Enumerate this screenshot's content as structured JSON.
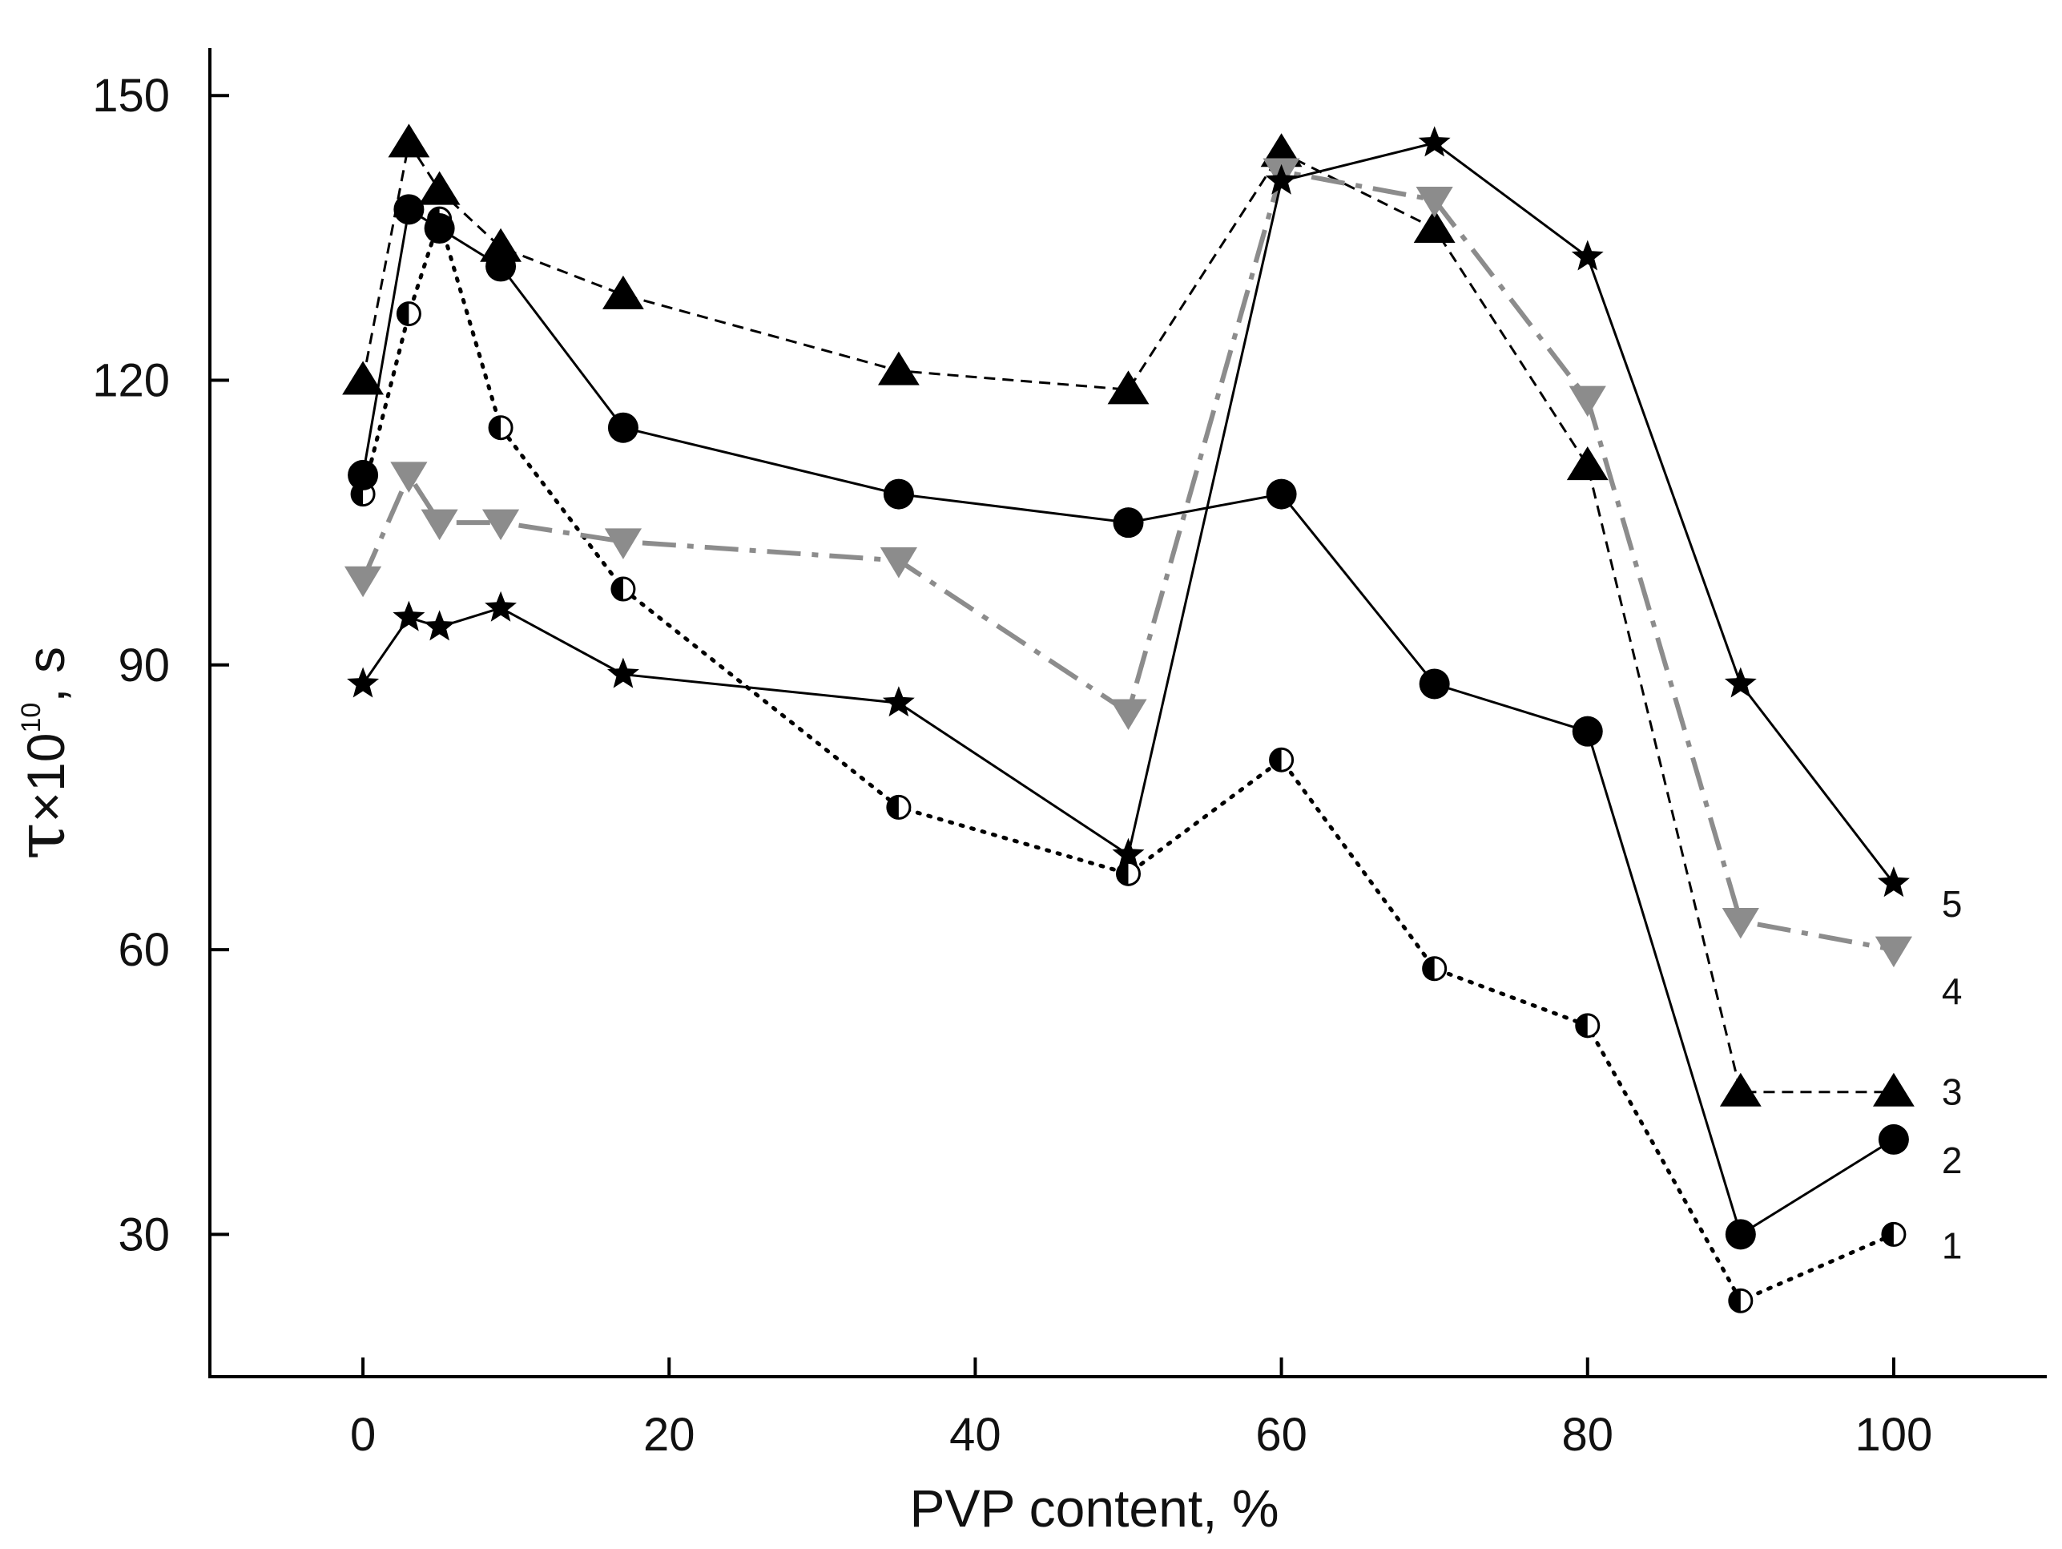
{
  "chart_data": {
    "type": "line",
    "title": "",
    "xlabel": "PVP content, %",
    "ylabel": {
      "symbol": "τ",
      "times": "×10",
      "exponent": "10",
      "unit": ", s"
    },
    "xlim": [
      -10,
      110
    ],
    "ylim": [
      15,
      155
    ],
    "x_ticks": [
      0,
      20,
      40,
      60,
      80,
      100
    ],
    "y_ticks": [
      30,
      60,
      90,
      120,
      150
    ],
    "grid": false,
    "legend": "curve numbers at right end of each line",
    "series": [
      {
        "name": "1",
        "marker": "half-filled-circle",
        "line": "dotted",
        "color": "#000000",
        "x": [
          0,
          3,
          5,
          9,
          17,
          35,
          50,
          60,
          70,
          80,
          90,
          100
        ],
        "y": [
          108,
          127,
          137,
          115,
          98,
          75,
          68,
          80,
          58,
          52,
          23,
          30
        ]
      },
      {
        "name": "2",
        "marker": "filled-circle",
        "line": "solid",
        "color": "#000000",
        "x": [
          0,
          3,
          5,
          9,
          17,
          35,
          50,
          60,
          70,
          80,
          90,
          100
        ],
        "y": [
          110,
          138,
          136,
          132,
          115,
          108,
          105,
          108,
          88,
          83,
          30,
          40
        ]
      },
      {
        "name": "3",
        "marker": "triangle-up",
        "line": "dashed",
        "color": "#000000",
        "x": [
          0,
          3,
          5,
          9,
          17,
          35,
          50,
          60,
          70,
          80,
          90,
          100
        ],
        "y": [
          120,
          145,
          140,
          134,
          129,
          121,
          119,
          144,
          136,
          111,
          45,
          45
        ]
      },
      {
        "name": "4",
        "marker": "triangle-down",
        "line": "dash-dot",
        "color": "#8c8c8c",
        "x": [
          0,
          3,
          5,
          9,
          17,
          35,
          50,
          60,
          70,
          80,
          90,
          100
        ],
        "y": [
          99,
          110,
          105,
          105,
          103,
          101,
          85,
          142,
          139,
          118,
          63,
          60
        ]
      },
      {
        "name": "5",
        "marker": "star",
        "line": "solid",
        "color": "#000000",
        "x": [
          0,
          3,
          5,
          9,
          17,
          35,
          50,
          60,
          70,
          80,
          90,
          100
        ],
        "y": [
          88,
          95,
          94,
          96,
          89,
          86,
          70,
          141,
          145,
          133,
          88,
          67
        ]
      }
    ]
  }
}
